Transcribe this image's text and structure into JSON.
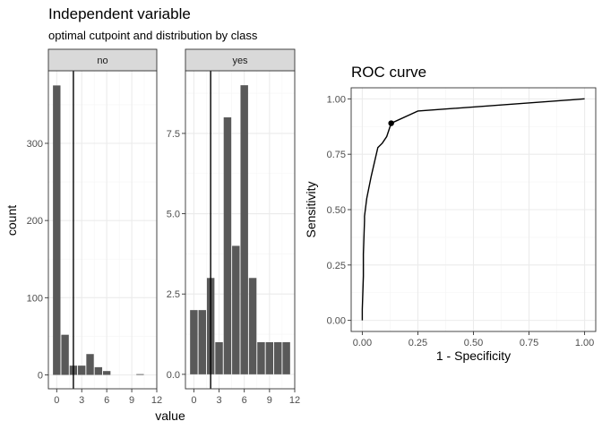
{
  "header": {
    "title": "Independent variable",
    "subtitle": "optimal cutpoint and distribution by class"
  },
  "colors": {
    "bar": "#595959",
    "grid_major": "#ebebeb",
    "grid_minor": "#f5f5f5",
    "panel_border": "#333333",
    "strip_fill": "#d9d9d9",
    "line": "#000000"
  },
  "chart_data": [
    {
      "type": "bar",
      "facet": "no",
      "strip_label": "no",
      "x": [
        0,
        1,
        2,
        3,
        4,
        5,
        6,
        10
      ],
      "values": [
        375,
        52,
        12,
        12,
        27,
        10,
        5,
        1
      ],
      "cutpoint": 2,
      "xlim": [
        -1,
        12
      ],
      "ylim": [
        -18,
        394
      ],
      "xticks": [
        0,
        3,
        6,
        9,
        12
      ],
      "xtick_labels": [
        "0",
        "3",
        "6",
        "9",
        "12"
      ],
      "yticks": [
        0,
        100,
        200,
        300
      ],
      "ytick_labels": [
        "0",
        "100",
        "200",
        "300"
      ],
      "xlabel": "value",
      "ylabel": "count",
      "grid": true
    },
    {
      "type": "bar",
      "facet": "yes",
      "strip_label": "yes",
      "x": [
        0,
        1,
        2,
        3,
        4,
        5,
        6,
        7,
        8,
        9,
        10,
        11
      ],
      "values": [
        2,
        2,
        3,
        1,
        8,
        4,
        9,
        3,
        1,
        1,
        1,
        1
      ],
      "cutpoint": 2,
      "xlim": [
        -1,
        12
      ],
      "ylim": [
        -0.45,
        9.45
      ],
      "xticks": [
        0,
        3,
        6,
        9,
        12
      ],
      "xtick_labels": [
        "0",
        "3",
        "6",
        "9",
        "12"
      ],
      "yticks": [
        0,
        2.5,
        5,
        7.5
      ],
      "ytick_labels": [
        "0.0",
        "2.5",
        "5.0",
        "7.5"
      ],
      "xlabel": "value",
      "ylabel": "count",
      "grid": true
    },
    {
      "type": "line",
      "title": "ROC curve",
      "x": [
        0.0,
        0.0,
        0.005,
        0.005,
        0.01,
        0.01,
        0.02,
        0.04,
        0.07,
        0.09,
        0.11,
        0.13,
        0.25,
        1.0
      ],
      "y": [
        0.0,
        0.05,
        0.2,
        0.3,
        0.45,
        0.47,
        0.55,
        0.65,
        0.78,
        0.8,
        0.83,
        0.89,
        0.945,
        1.0
      ],
      "point": {
        "x": 0.13,
        "y": 0.89
      },
      "xlim": [
        -0.05,
        1.05
      ],
      "ylim": [
        -0.05,
        1.05
      ],
      "xticks": [
        0,
        0.25,
        0.5,
        0.75,
        1.0
      ],
      "xtick_labels": [
        "0.00",
        "0.25",
        "0.50",
        "0.75",
        "1.00"
      ],
      "yticks": [
        0,
        0.25,
        0.5,
        0.75,
        1.0
      ],
      "ytick_labels": [
        "0.00",
        "0.25",
        "0.50",
        "0.75",
        "1.00"
      ],
      "xlabel": "1 - Specificity",
      "ylabel": "Sensitivity",
      "grid": true
    }
  ]
}
